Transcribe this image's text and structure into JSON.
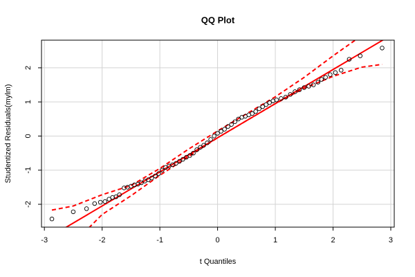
{
  "chart_data": {
    "type": "scatter",
    "title": "QQ Plot",
    "x_label": "t Quantiles",
    "y_label": "Studentized Residuals(mylm)",
    "xlim": [
      -3.05,
      3.06
    ],
    "ylim": [
      -2.67,
      2.81
    ],
    "xticks": [
      -3,
      -2,
      -1,
      0,
      1,
      2,
      3
    ],
    "yticks": [
      -2,
      -1,
      0,
      1,
      2
    ],
    "grid": true,
    "points": {
      "color": "#000000",
      "x": [
        -2.87,
        -2.5,
        -2.27,
        -2.13,
        -2.03,
        -1.95,
        -1.88,
        -1.82,
        -1.76,
        -1.7,
        -1.62,
        -1.56,
        -1.5,
        -1.44,
        -1.38,
        -1.32,
        -1.26,
        -1.2,
        -1.14,
        -1.08,
        -1.02,
        -0.96,
        -0.9,
        -0.84,
        -0.78,
        -0.72,
        -0.66,
        -0.6,
        -0.54,
        -0.48,
        -0.42,
        -0.36,
        -0.3,
        -0.24,
        -0.18,
        -0.12,
        -0.06,
        0,
        0.06,
        0.12,
        0.18,
        0.24,
        0.3,
        0.36,
        0.42,
        0.48,
        0.54,
        0.6,
        0.66,
        0.72,
        0.78,
        0.84,
        0.9,
        0.96,
        1.02,
        1.1,
        1.18,
        1.26,
        1.34,
        1.42,
        1.5,
        1.58,
        1.66,
        1.74,
        1.8,
        1.87,
        1.95,
        2.04,
        2.14,
        2.28,
        2.47,
        2.85
      ],
      "y": [
        -2.43,
        -2.22,
        -2.13,
        -1.98,
        -1.94,
        -1.92,
        -1.85,
        -1.8,
        -1.78,
        -1.72,
        -1.52,
        -1.5,
        -1.47,
        -1.43,
        -1.41,
        -1.37,
        -1.32,
        -1.28,
        -1.23,
        -1.17,
        -1.1,
        -1.0,
        -0.92,
        -0.88,
        -0.84,
        -0.8,
        -0.74,
        -0.68,
        -0.62,
        -0.57,
        -0.5,
        -0.4,
        -0.33,
        -0.27,
        -0.2,
        -0.1,
        0.0,
        0.08,
        0.14,
        0.2,
        0.28,
        0.34,
        0.42,
        0.5,
        0.55,
        0.58,
        0.62,
        0.66,
        0.72,
        0.8,
        0.86,
        0.92,
        0.98,
        1.03,
        1.06,
        1.1,
        1.14,
        1.22,
        1.3,
        1.36,
        1.42,
        1.46,
        1.5,
        1.58,
        1.66,
        1.72,
        1.8,
        1.86,
        1.93,
        2.25,
        2.35,
        2.58
      ]
    },
    "reference_line": {
      "color": "#ff0000",
      "intercept": -0.05,
      "slope": 1.0
    },
    "envelope": {
      "color": "#ff0000",
      "x": [
        -2.87,
        -2.5,
        -2,
        -1.5,
        -1,
        -0.5,
        0,
        0.5,
        1,
        1.5,
        2,
        2.5,
        2.85
      ],
      "upper": [
        -2.17,
        -2.05,
        -1.72,
        -1.45,
        -0.95,
        -0.38,
        0.15,
        0.65,
        1.15,
        1.72,
        2.35,
        2.95,
        3.35
      ],
      "lower": [
        -3.6,
        -3.15,
        -2.3,
        -1.75,
        -1.15,
        -0.6,
        -0.05,
        0.45,
        0.95,
        1.4,
        1.75,
        2.02,
        2.1
      ]
    }
  }
}
